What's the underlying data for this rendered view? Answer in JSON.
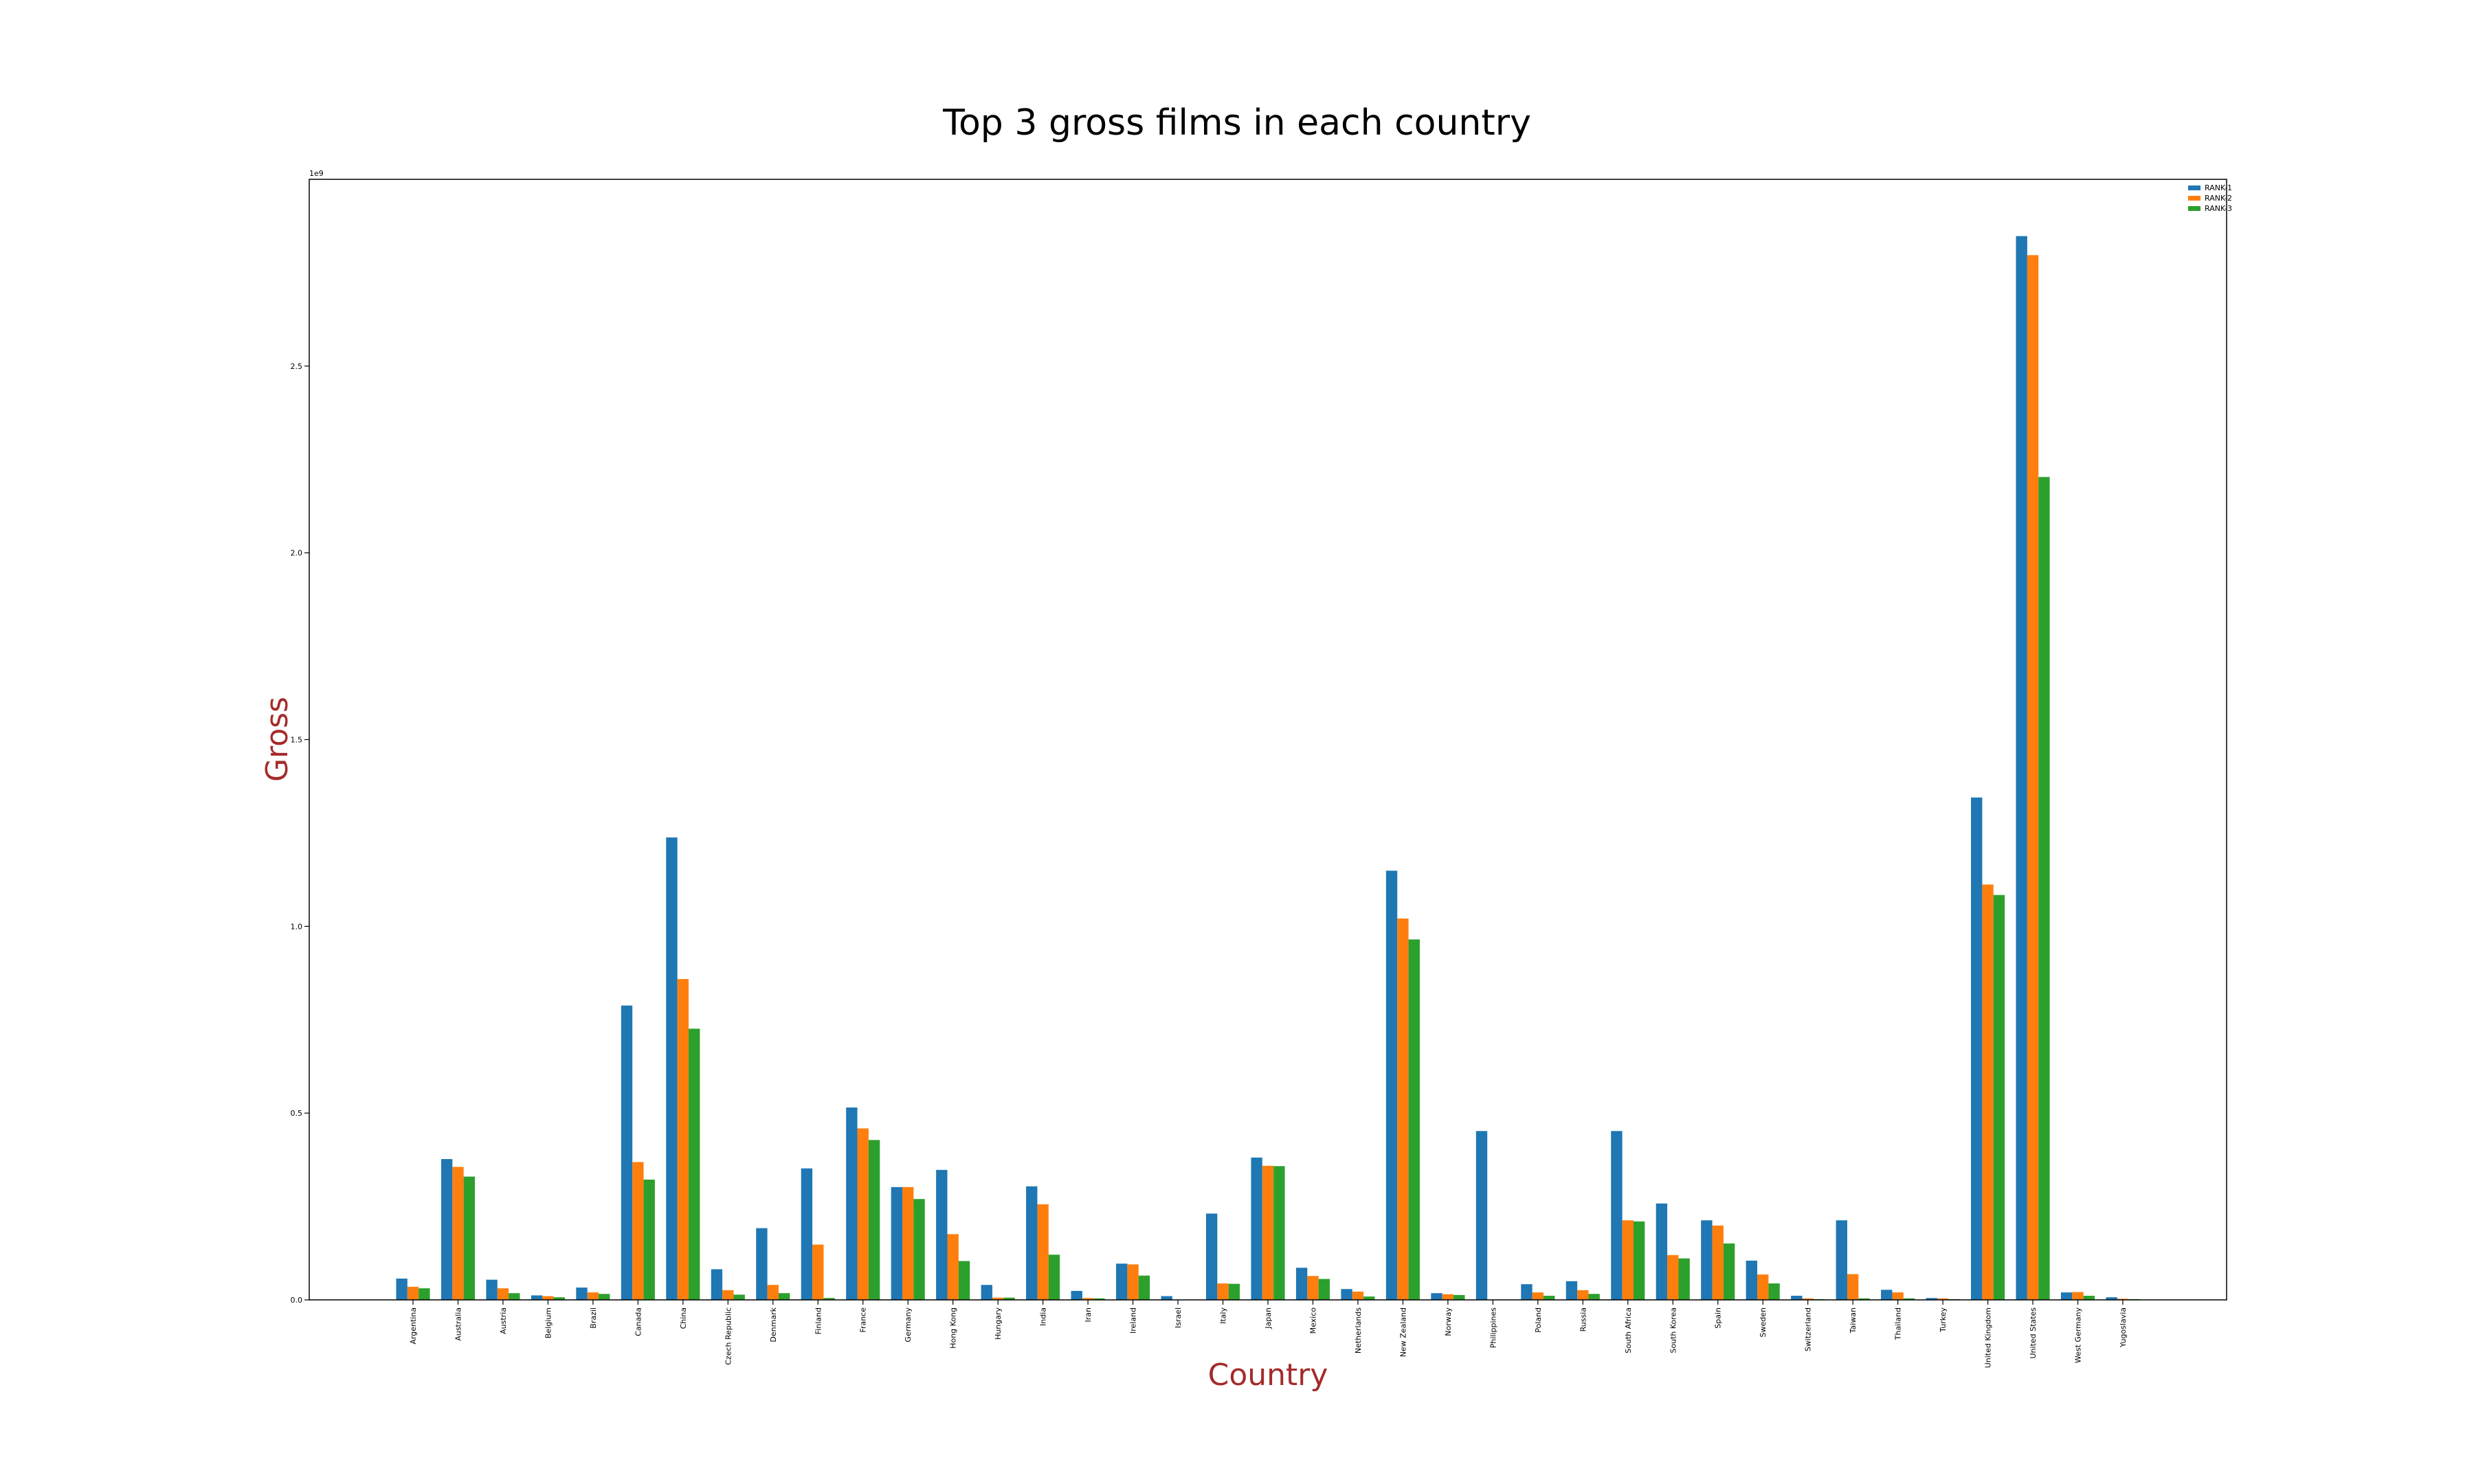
{
  "chart_data": {
    "type": "bar",
    "title": "Top 3 gross films in each country",
    "xlabel": "Country",
    "ylabel": "Gross",
    "axis_label_color": "#a52a2a",
    "offset_text": "1e9",
    "ylim": [
      0,
      3000000000.0
    ],
    "yticks": [
      0.0,
      0.5,
      1.0,
      1.5,
      2.0,
      2.5
    ],
    "ytick_labels": [
      "0.0",
      "0.5",
      "1.0",
      "1.5",
      "2.0",
      "2.5"
    ],
    "grid": false,
    "legend_position": "top-right",
    "categories": [
      "Argentina",
      "Australia",
      "Austria",
      "Belgium",
      "Brazil",
      "Canada",
      "China",
      "Czech Republic",
      "Denmark",
      "Finland",
      "France",
      "Germany",
      "Hong Kong",
      "Hungary",
      "India",
      "Iran",
      "Ireland",
      "Israel",
      "Italy",
      "Japan",
      "Mexico",
      "Netherlands",
      "New Zealand",
      "Norway",
      "Philippines",
      "Poland",
      "Russia",
      "South Africa",
      "South Korea",
      "Spain",
      "Sweden",
      "Switzerland",
      "Taiwan",
      "Thailand",
      "Turkey",
      "United Kingdom",
      "United States",
      "West Germany",
      "Yugoslavia"
    ],
    "series": [
      {
        "name": "RANK-1",
        "color": "#1f77b4",
        "values": [
          0.057,
          0.377,
          0.054,
          0.012,
          0.033,
          0.788,
          1.238,
          0.082,
          0.192,
          0.352,
          0.515,
          0.302,
          0.348,
          0.04,
          0.304,
          0.024,
          0.097,
          0.01,
          0.231,
          0.381,
          0.086,
          0.029,
          1.149,
          0.018,
          0.452,
          0.042,
          0.05,
          0.452,
          0.258,
          0.213,
          0.105,
          0.011,
          0.213,
          0.027,
          0.005,
          1.345,
          2.848,
          0.02,
          0.007
        ]
      },
      {
        "name": "RANK-2",
        "color": "#ff7f0e",
        "values": [
          0.035,
          0.356,
          0.031,
          0.01,
          0.02,
          0.369,
          0.859,
          0.026,
          0.04,
          0.148,
          0.459,
          0.302,
          0.176,
          0.006,
          0.256,
          0.005,
          0.095,
          0.0,
          0.044,
          0.359,
          0.064,
          0.022,
          1.021,
          0.015,
          0.0,
          0.02,
          0.026,
          0.213,
          0.12,
          0.199,
          0.068,
          0.004,
          0.069,
          0.02,
          0.004,
          1.112,
          2.797,
          0.021,
          0.003
        ]
      },
      {
        "name": "RANK-3",
        "color": "#2ca02c",
        "values": [
          0.031,
          0.33,
          0.018,
          0.007,
          0.016,
          0.322,
          0.726,
          0.014,
          0.018,
          0.005,
          0.428,
          0.27,
          0.104,
          0.006,
          0.121,
          0.004,
          0.065,
          0.0,
          0.043,
          0.358,
          0.056,
          0.009,
          0.965,
          0.013,
          0.0,
          0.011,
          0.016,
          0.21,
          0.111,
          0.151,
          0.044,
          0.002,
          0.004,
          0.004,
          0.002,
          1.084,
          2.203,
          0.011,
          0.002
        ]
      }
    ]
  }
}
